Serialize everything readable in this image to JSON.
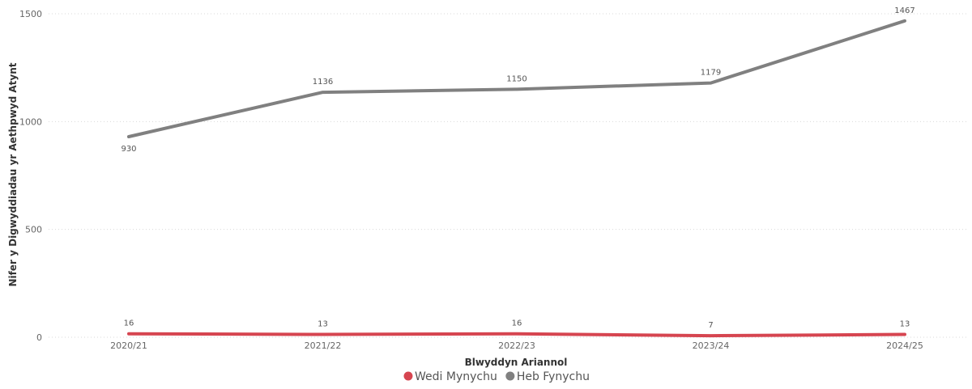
{
  "chart_data": {
    "type": "line",
    "title": "",
    "xlabel": "Blwyddyn Ariannol",
    "ylabel": "Nifer y Digwyddiadau yr Aethpwyd Atynt",
    "categories": [
      "2020/21",
      "2021/22",
      "2022/23",
      "2023/24",
      "2024/25"
    ],
    "ylim": [
      0,
      1500
    ],
    "yticks": [
      0,
      500,
      1000,
      1500
    ],
    "grid": true,
    "legend_position": "bottom-center",
    "series": [
      {
        "name": "Wedi Mynychu",
        "color": "#d64550",
        "values": [
          16,
          13,
          16,
          7,
          13
        ]
      },
      {
        "name": "Heb Fynychu",
        "color": "#808080",
        "values": [
          930,
          1136,
          1150,
          1179,
          1467
        ]
      }
    ]
  }
}
